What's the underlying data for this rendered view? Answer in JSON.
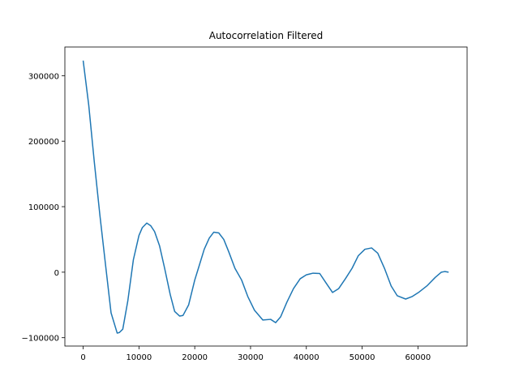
{
  "chart_data": {
    "type": "line",
    "title": "Autocorrelation Filtered",
    "color": "#1f77b4",
    "x": [
      0,
      1000,
      2000,
      3000,
      4000,
      5000,
      6100,
      6500,
      7100,
      8000,
      9000,
      10000,
      10600,
      11400,
      12100,
      12800,
      13700,
      14600,
      15600,
      16400,
      17300,
      17900,
      18900,
      20000,
      20800,
      21700,
      22600,
      23400,
      24300,
      25200,
      26100,
      27200,
      28400,
      29500,
      30700,
      32200,
      33600,
      34500,
      35400,
      36500,
      37700,
      38900,
      40000,
      41200,
      42400,
      43500,
      44700,
      45800,
      47000,
      48200,
      49300,
      50500,
      51700,
      52800,
      54000,
      55200,
      56300,
      57800,
      59000,
      60100,
      61600,
      63100,
      64200,
      64800,
      65500
    ],
    "values": [
      323000,
      255000,
      168000,
      87000,
      12000,
      -62000,
      -93000,
      -92000,
      -87000,
      -44000,
      19000,
      56000,
      68000,
      75000,
      71000,
      62000,
      40000,
      6000,
      -34000,
      -60000,
      -67000,
      -66000,
      -50000,
      -12000,
      10000,
      35000,
      52000,
      61000,
      60000,
      50000,
      31000,
      6000,
      -12000,
      -37000,
      -58000,
      -73000,
      -72000,
      -77000,
      -68000,
      -46000,
      -25000,
      -10000,
      -4000,
      -1500,
      -2000,
      -16000,
      -31000,
      -25000,
      -10000,
      6000,
      25000,
      35000,
      37000,
      29000,
      6000,
      -21000,
      -36000,
      -41000,
      -37000,
      -31000,
      -21000,
      -8000,
      0,
      1000,
      0
    ],
    "xlim": [
      -3277,
      68812
    ],
    "ylim": [
      -112750,
      343750
    ],
    "xticks": [
      0,
      10000,
      20000,
      30000,
      40000,
      50000,
      60000
    ],
    "yticks": [
      {
        "value": -100000,
        "label": "−100000"
      },
      0,
      100000,
      200000,
      300000
    ]
  }
}
